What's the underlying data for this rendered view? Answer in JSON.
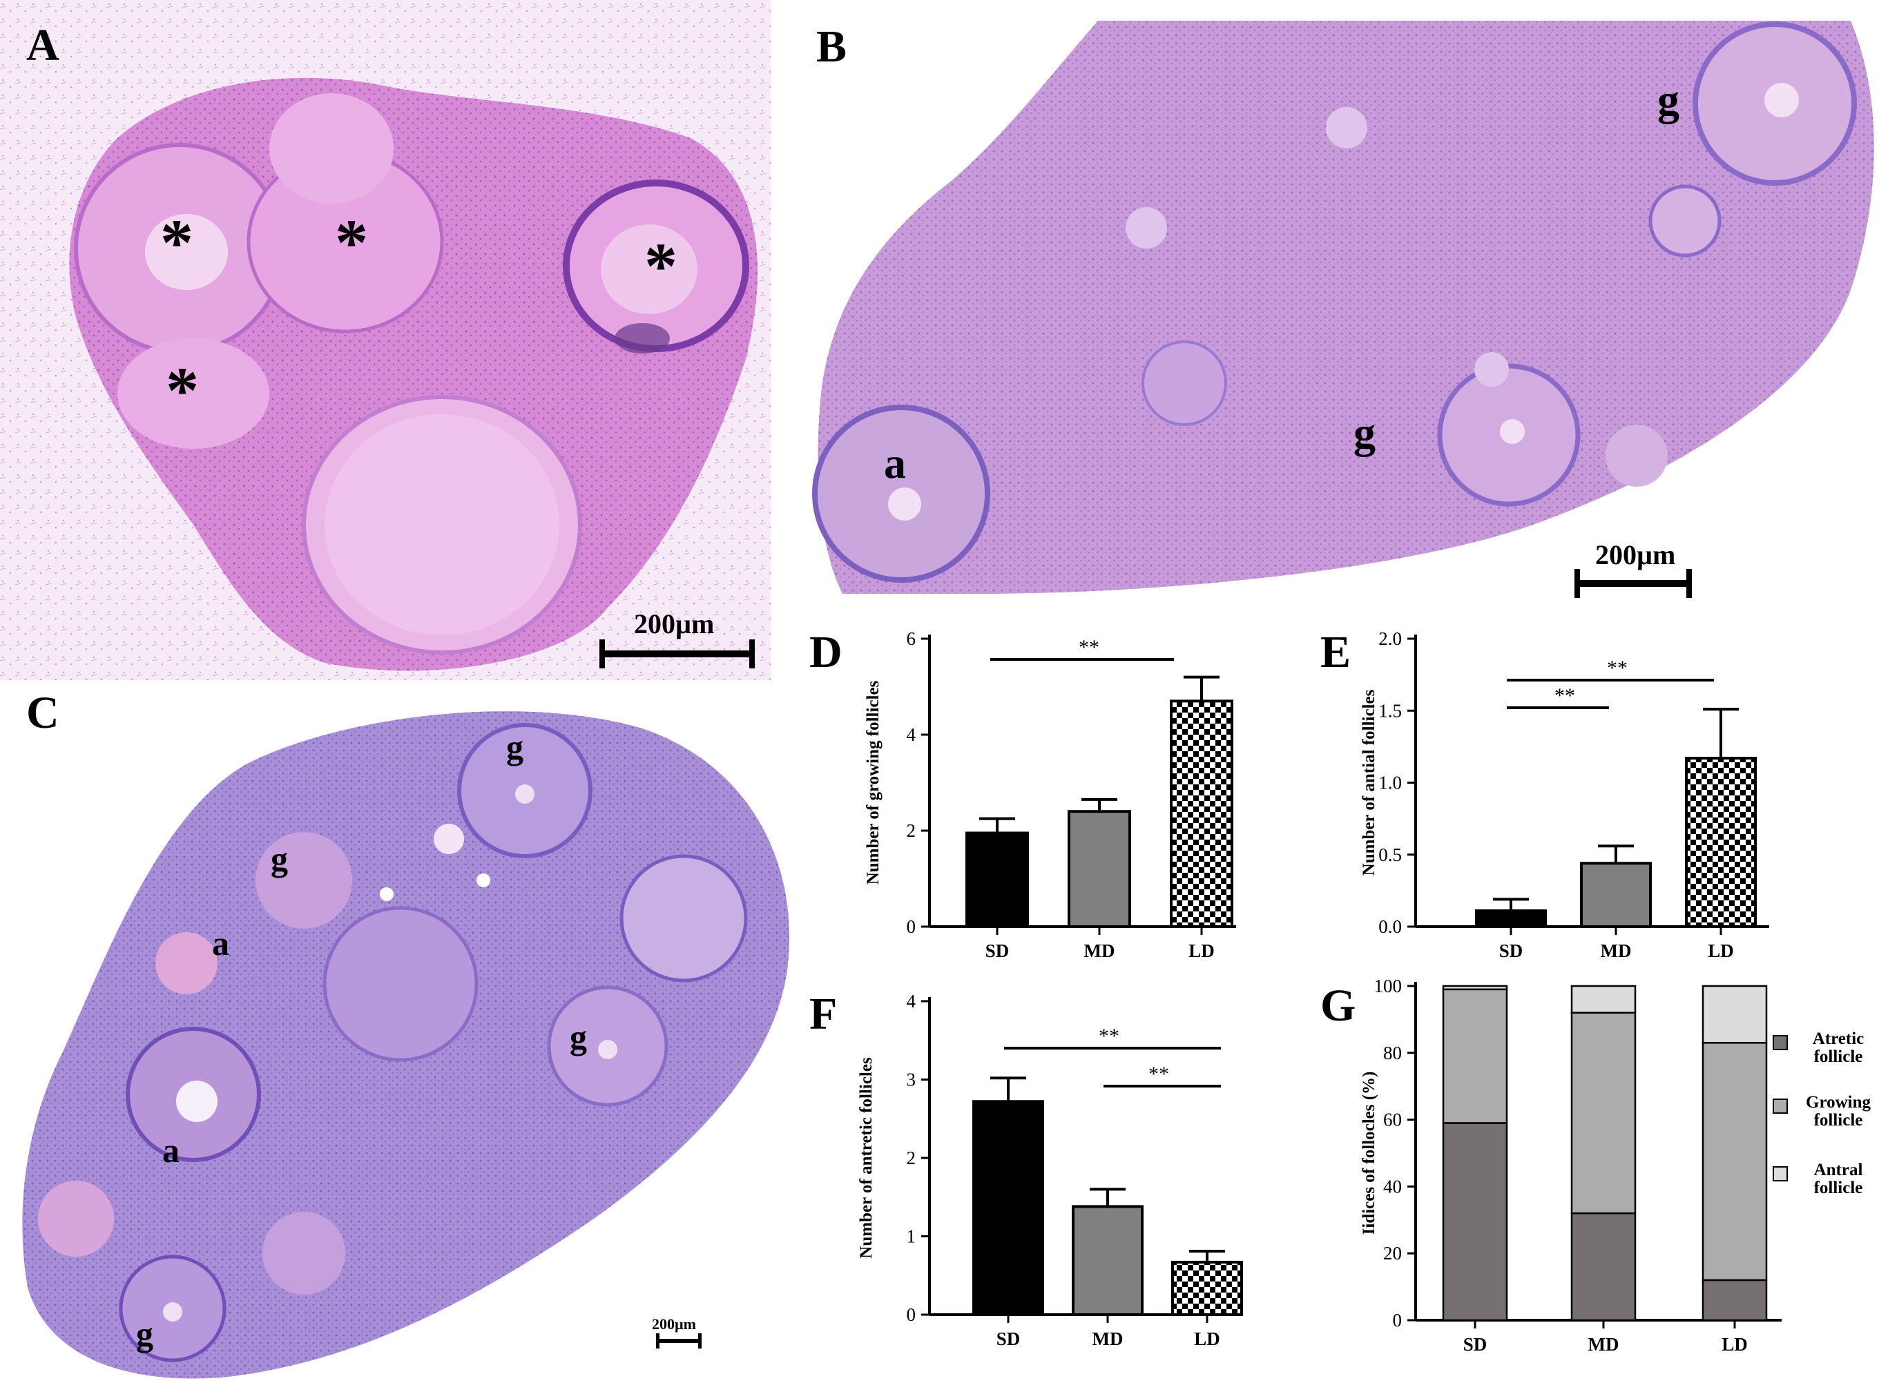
{
  "panels": {
    "A": {
      "letter": "A",
      "markers": [
        "*",
        "*",
        "*",
        "*"
      ],
      "scale_bar": "200µm"
    },
    "B": {
      "letter": "B",
      "markers": [
        "g",
        "g",
        "a"
      ],
      "scale_bar": "200µm"
    },
    "C": {
      "letter": "C",
      "markers": [
        "g",
        "g",
        "a",
        "g",
        "a",
        "g"
      ],
      "scale_bar": "200µm"
    }
  },
  "colors": {
    "tissue_pink": "#d88bd6",
    "tissue_purple": "#9a7ad8",
    "bar_sd": "#000000",
    "bar_md": "#808080",
    "stack_atretic": "#777070",
    "stack_growing": "#acacac",
    "stack_antral": "#dcdcdc"
  },
  "chart_data": [
    {
      "id": "D",
      "letter": "D",
      "type": "bar",
      "categories": [
        "SD",
        "MD",
        "LD"
      ],
      "values": [
        1.95,
        2.4,
        4.7
      ],
      "errors": [
        0.3,
        0.25,
        0.5
      ],
      "ylabel": "Number of growing follicles",
      "ylim": [
        0,
        6
      ],
      "yticks": [
        "0",
        "2",
        "4",
        "6"
      ],
      "significance": [
        {
          "from": "SD",
          "to": "LD",
          "label": "**"
        }
      ]
    },
    {
      "id": "E",
      "letter": "E",
      "type": "bar",
      "categories": [
        "SD",
        "MD",
        "LD"
      ],
      "values": [
        0.11,
        0.44,
        1.17
      ],
      "errors": [
        0.08,
        0.12,
        0.34
      ],
      "ylabel": "Number of antial follicles",
      "ylim": [
        0,
        2.0
      ],
      "yticks": [
        "0.0",
        "0.5",
        "1.0",
        "1.5",
        "2.0"
      ],
      "significance": [
        {
          "from": "SD",
          "to": "MD",
          "label": "**"
        },
        {
          "from": "SD",
          "to": "LD",
          "label": "**"
        }
      ]
    },
    {
      "id": "F",
      "letter": "F",
      "type": "bar",
      "categories": [
        "SD",
        "MD",
        "LD"
      ],
      "values": [
        2.72,
        1.38,
        0.67
      ],
      "errors": [
        0.3,
        0.22,
        0.14
      ],
      "ylabel": "Number of antretic follicles",
      "ylim": [
        0,
        4
      ],
      "yticks": [
        "0",
        "1",
        "2",
        "3",
        "4"
      ],
      "significance": [
        {
          "from": "SD",
          "to": "LD",
          "label": "**"
        },
        {
          "from": "MD",
          "to": "LD",
          "label": "**"
        }
      ]
    },
    {
      "id": "G",
      "letter": "G",
      "type": "bar",
      "stacked": true,
      "categories": [
        "SD",
        "MD",
        "LD"
      ],
      "series": [
        {
          "name": "Atretic follicle",
          "values": [
            59,
            32,
            12
          ]
        },
        {
          "name": "Growing follicle",
          "values": [
            40,
            60,
            71
          ]
        },
        {
          "name": "Antral follicle",
          "values": [
            1,
            8,
            17
          ]
        }
      ],
      "ylabel": "Iidices of follocles (%)",
      "ylim": [
        0,
        100
      ],
      "yticks": [
        "0",
        "20",
        "40",
        "60",
        "80",
        "100"
      ],
      "legend": "right"
    }
  ]
}
